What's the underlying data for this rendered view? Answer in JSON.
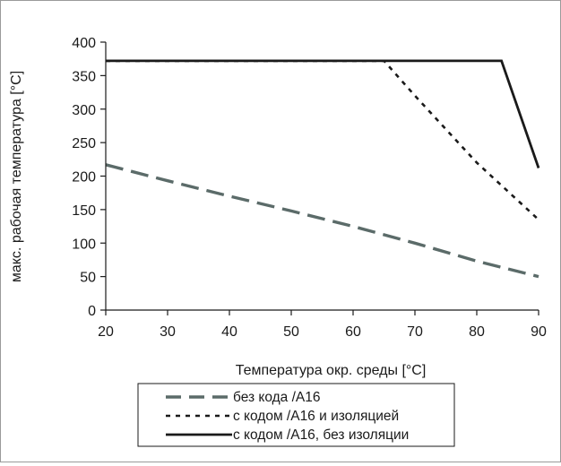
{
  "chart_data": {
    "type": "line",
    "title": "",
    "xlabel": "Температура окр. среды [°C]",
    "ylabel": "макс. рабочая температура [°C]",
    "xlim": [
      20,
      90
    ],
    "ylim": [
      0,
      400
    ],
    "xticks": [
      20,
      30,
      40,
      50,
      60,
      70,
      80,
      90
    ],
    "yticks": [
      0,
      50,
      100,
      150,
      200,
      250,
      300,
      350,
      400
    ],
    "grid": false,
    "legend_position": "bottom",
    "series": [
      {
        "name": "без кода /A16",
        "style": "dashed-long",
        "color": "#5b6b69",
        "x": [
          20,
          30,
          40,
          50,
          60,
          70,
          80,
          90
        ],
        "y": [
          217,
          193,
          170,
          148,
          125,
          100,
          73,
          50
        ]
      },
      {
        "name": "с кодом /A16 и изоляцией",
        "style": "dotted",
        "color": "#1a1a1a",
        "x": [
          20,
          65,
          70,
          80,
          90
        ],
        "y": [
          372,
          372,
          320,
          220,
          135
        ]
      },
      {
        "name": "с кодом /A16, без изоляции",
        "style": "solid",
        "color": "#1a1a1a",
        "x": [
          20,
          84,
          90
        ],
        "y": [
          372,
          372,
          212
        ]
      }
    ]
  }
}
